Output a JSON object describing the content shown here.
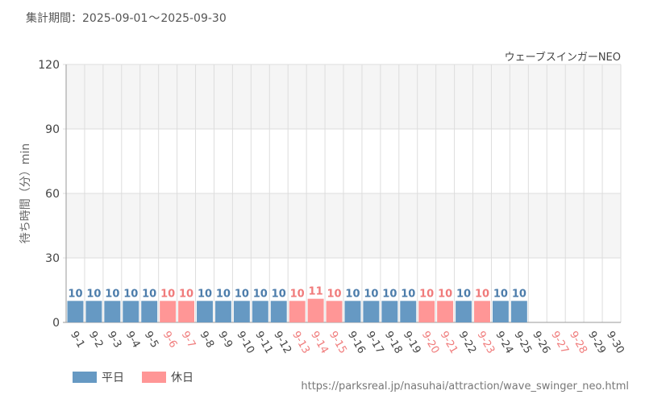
{
  "header": {
    "period_label": "集計期間：",
    "period_start": "2025-09-01",
    "period_sep": "～",
    "period_end": "2025-09-30"
  },
  "attraction_name": "ウェーブスインガーNEO",
  "legend": {
    "weekday_label": "平日",
    "holiday_label": "休日"
  },
  "colors": {
    "weekday": "#6699c3",
    "holiday": "#ff9696",
    "weekday_text": "#4d7dab",
    "holiday_text": "#f07b7b",
    "band": "#f5f5f5",
    "grid": "#dddddd"
  },
  "source_url": "https://parksreal.jp/nasuhai/attraction/wave_swinger_neo.html",
  "chart_data": {
    "type": "bar",
    "ylabel": "待ち時間（分）min",
    "ylim": [
      0,
      120
    ],
    "yticks": [
      0,
      30,
      60,
      90,
      120
    ],
    "shaded_bands": [
      [
        30,
        60
      ],
      [
        90,
        120
      ]
    ],
    "grid": true,
    "legend_position": "bottom-left",
    "categories": [
      "9-1",
      "9-2",
      "9-3",
      "9-4",
      "9-5",
      "9-6",
      "9-7",
      "9-8",
      "9-9",
      "9-10",
      "9-11",
      "9-12",
      "9-13",
      "9-14",
      "9-15",
      "9-16",
      "9-17",
      "9-18",
      "9-19",
      "9-20",
      "9-21",
      "9-22",
      "9-23",
      "9-24",
      "9-25",
      "9-26",
      "9-27",
      "9-28",
      "9-29",
      "9-30"
    ],
    "day_type": [
      "平日",
      "平日",
      "平日",
      "平日",
      "平日",
      "休日",
      "休日",
      "平日",
      "平日",
      "平日",
      "平日",
      "平日",
      "休日",
      "休日",
      "休日",
      "平日",
      "平日",
      "平日",
      "平日",
      "休日",
      "休日",
      "平日",
      "休日",
      "平日",
      "平日",
      "平日",
      "休日",
      "休日",
      "平日",
      "平日"
    ],
    "values": [
      10,
      10,
      10,
      10,
      10,
      10,
      10,
      10,
      10,
      10,
      10,
      10,
      10,
      11,
      10,
      10,
      10,
      10,
      10,
      10,
      10,
      10,
      10,
      10,
      10,
      null,
      null,
      null,
      null,
      null
    ]
  }
}
